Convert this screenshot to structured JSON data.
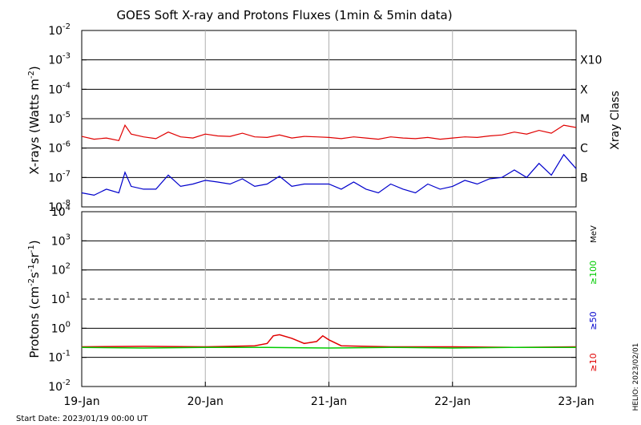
{
  "title": "GOES Soft X-ray and Protons Fluxes   (1min & 5min data)",
  "start_date": "Start Date: 2023/01/19 00:00 UT",
  "credit": "HELIO: 2023/02/01",
  "colors": {
    "red": "#e00000",
    "blue": "#0000cc",
    "green": "#00cc00",
    "grid": "#000000",
    "day_grid": "#b0b0b0"
  },
  "chart_data": [
    {
      "type": "line",
      "panel": "xray",
      "ylabel": "X-rays (Watts m",
      "ylabel_sup": "-2",
      "yscale": "log",
      "ylim": [
        1e-08,
        0.01
      ],
      "ytick_labels": [
        {
          "base": "10",
          "exp": "-2"
        },
        {
          "base": "10",
          "exp": "-3"
        },
        {
          "base": "10",
          "exp": "-4"
        },
        {
          "base": "10",
          "exp": "-5"
        },
        {
          "base": "10",
          "exp": "-6"
        },
        {
          "base": "10",
          "exp": "-7"
        },
        {
          "base": "10",
          "exp": "-8"
        }
      ],
      "right_axis_label": "Xray Class",
      "class_labels": [
        "X10",
        "X",
        "M",
        "C",
        "B"
      ],
      "grid": true,
      "series": [
        {
          "color": "red",
          "x": [
            0,
            0.1,
            0.2,
            0.3,
            0.35,
            0.4,
            0.5,
            0.6,
            0.7,
            0.8,
            0.9,
            1.0,
            1.1,
            1.2,
            1.3,
            1.4,
            1.5,
            1.6,
            1.7,
            1.8,
            1.9,
            2.0,
            2.1,
            2.2,
            2.3,
            2.4,
            2.5,
            2.6,
            2.7,
            2.8,
            2.9,
            3.0,
            3.1,
            3.2,
            3.3,
            3.4,
            3.5,
            3.6,
            3.7,
            3.8,
            3.9,
            4.0
          ],
          "y": [
            2.5e-06,
            2e-06,
            2.2e-06,
            1.8e-06,
            6e-06,
            3e-06,
            2.4e-06,
            2.1e-06,
            3.5e-06,
            2.4e-06,
            2.2e-06,
            3e-06,
            2.6e-06,
            2.5e-06,
            3.2e-06,
            2.4e-06,
            2.3e-06,
            2.8e-06,
            2.2e-06,
            2.5e-06,
            2.4e-06,
            2.3e-06,
            2.1e-06,
            2.4e-06,
            2.2e-06,
            2e-06,
            2.4e-06,
            2.2e-06,
            2.1e-06,
            2.3e-06,
            2e-06,
            2.2e-06,
            2.4e-06,
            2.3e-06,
            2.6e-06,
            2.8e-06,
            3.5e-06,
            3e-06,
            4e-06,
            3.2e-06,
            6e-06,
            5e-06
          ]
        },
        {
          "color": "blue",
          "x": [
            0,
            0.1,
            0.2,
            0.3,
            0.35,
            0.4,
            0.5,
            0.6,
            0.7,
            0.8,
            0.9,
            1.0,
            1.1,
            1.2,
            1.3,
            1.4,
            1.5,
            1.6,
            1.7,
            1.8,
            1.9,
            2.0,
            2.1,
            2.2,
            2.3,
            2.4,
            2.5,
            2.6,
            2.7,
            2.8,
            2.9,
            3.0,
            3.1,
            3.2,
            3.3,
            3.4,
            3.5,
            3.6,
            3.7,
            3.8,
            3.9,
            4.0
          ],
          "y": [
            3e-08,
            2.5e-08,
            4e-08,
            3e-08,
            1.5e-07,
            5e-08,
            4e-08,
            4e-08,
            1.2e-07,
            5e-08,
            6e-08,
            8e-08,
            7e-08,
            6e-08,
            9e-08,
            5e-08,
            6e-08,
            1.1e-07,
            5e-08,
            6e-08,
            6e-08,
            6e-08,
            4e-08,
            7e-08,
            4e-08,
            3e-08,
            6e-08,
            4e-08,
            3e-08,
            6e-08,
            4e-08,
            5e-08,
            8e-08,
            6e-08,
            9e-08,
            1e-07,
            1.8e-07,
            1e-07,
            3e-07,
            1.2e-07,
            6e-07,
            2e-07
          ]
        }
      ]
    },
    {
      "type": "line",
      "panel": "protons",
      "ylabel": "Protons (cm",
      "ylabel_sup1": "-2",
      "ylabel_mid": "s",
      "ylabel_sup2": "-1",
      "ylabel_mid2": "sr",
      "ylabel_sup3": "-1",
      "ylabel_end": ")",
      "yscale": "log",
      "ylim": [
        0.01,
        10000.0
      ],
      "ytick_labels": [
        {
          "base": "10",
          "exp": "4"
        },
        {
          "base": "10",
          "exp": "3"
        },
        {
          "base": "10",
          "exp": "2"
        },
        {
          "base": "10",
          "exp": "1"
        },
        {
          "base": "10",
          "exp": "0"
        },
        {
          "base": "10",
          "exp": "-1"
        },
        {
          "base": "10",
          "exp": "-2"
        }
      ],
      "xtick_labels": [
        "19-Jan",
        "20-Jan",
        "21-Jan",
        "22-Jan",
        "23-Jan"
      ],
      "xlim": [
        0,
        4
      ],
      "threshold_level": 10,
      "energy_unit": "MeV",
      "legend": [
        {
          "label": "≥100",
          "color": "green"
        },
        {
          "label": "≥50",
          "color": "blue"
        },
        {
          "label": "≥10",
          "color": "red"
        }
      ],
      "series": [
        {
          "color": "red",
          "x": [
            0,
            0.5,
            1.0,
            1.4,
            1.5,
            1.55,
            1.6,
            1.7,
            1.8,
            1.9,
            1.95,
            2.0,
            2.1,
            2.5,
            3.0,
            3.5,
            4.0
          ],
          "y": [
            0.23,
            0.24,
            0.23,
            0.25,
            0.3,
            0.55,
            0.6,
            0.45,
            0.3,
            0.35,
            0.55,
            0.4,
            0.25,
            0.23,
            0.23,
            0.22,
            0.23
          ]
        },
        {
          "color": "green",
          "x": [
            0,
            0.5,
            1.0,
            1.5,
            2.0,
            2.5,
            3.0,
            3.5,
            4.0
          ],
          "y": [
            0.22,
            0.21,
            0.22,
            0.22,
            0.21,
            0.22,
            0.21,
            0.22,
            0.22
          ]
        }
      ]
    }
  ]
}
